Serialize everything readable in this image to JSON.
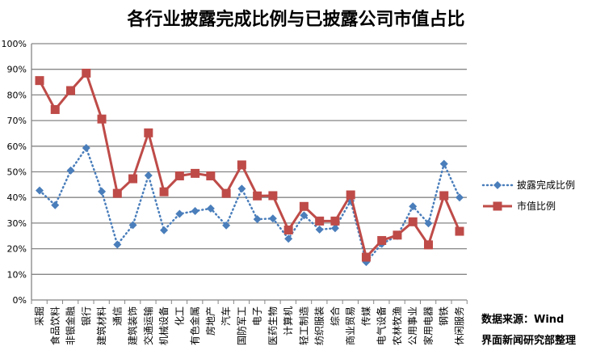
{
  "title": "各行业披露完成比例与已披露公司市值占比",
  "source_line1": "数据来源：Wind",
  "source_line2": "界面新闻研究部整理",
  "chart_data": {
    "type": "line",
    "title": "各行业披露完成比例与已披露公司市值占比",
    "ylim": [
      0,
      100
    ],
    "yticks": [
      "0%",
      "10%",
      "20%",
      "30%",
      "40%",
      "50%",
      "60%",
      "70%",
      "80%",
      "90%",
      "100%"
    ],
    "grid": true,
    "legend": "right",
    "categories": [
      "采掘",
      "食品饮料",
      "非银金融",
      "银行",
      "建筑材料",
      "通信",
      "建筑装饰",
      "交通运输",
      "机械设备",
      "化工",
      "有色金属",
      "房地产",
      "汽车",
      "国防军工",
      "电子",
      "医药生物",
      "计算机",
      "轻工制造",
      "纺织服装",
      "综合",
      "商业贸易",
      "传媒",
      "电气设备",
      "农林牧渔",
      "公用事业",
      "家用电器",
      "钢铁",
      "休闲服务"
    ],
    "series": [
      {
        "name": "披露完成比例",
        "color": "#4a7ebb",
        "style": "dotted-diamond",
        "values": [
          42.7,
          37.0,
          50.5,
          59.3,
          42.3,
          21.6,
          29.2,
          48.6,
          27.2,
          33.6,
          34.7,
          35.7,
          29.1,
          43.4,
          31.5,
          31.8,
          23.9,
          33.0,
          27.5,
          28.0,
          38.7,
          14.8,
          21.9,
          25.0,
          36.5,
          29.9,
          53.1,
          40.0
        ]
      },
      {
        "name": "市值比例",
        "color": "#be4b48",
        "style": "solid-square",
        "values": [
          85.6,
          74.3,
          81.7,
          88.5,
          70.6,
          41.6,
          47.3,
          65.2,
          42.2,
          48.4,
          49.4,
          48.4,
          41.6,
          52.7,
          40.6,
          40.7,
          27.3,
          36.5,
          30.8,
          30.8,
          41.0,
          16.7,
          23.2,
          25.3,
          30.5,
          21.5,
          40.7,
          26.8
        ]
      }
    ]
  }
}
